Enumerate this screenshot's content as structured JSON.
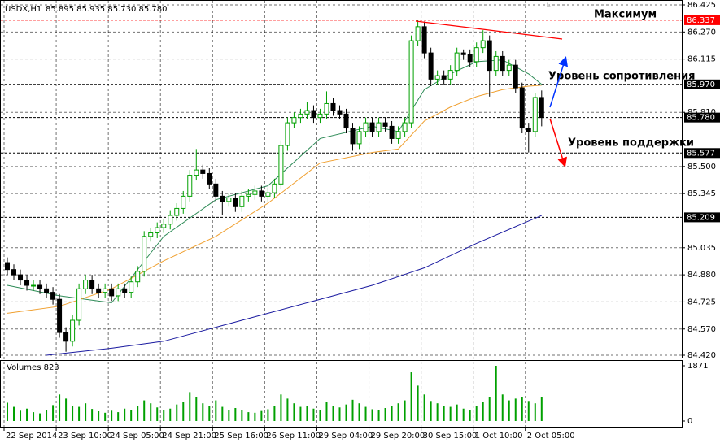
{
  "chart_data": {
    "type": "candlestick",
    "title": "USDX,H1",
    "subtitle": "85.895 85.935 85.730 85.780",
    "bull_color": "#00a000",
    "bear_color": "#000000",
    "grid": true,
    "xlim": [
      -0.5,
      103.5
    ],
    "xticks": [
      {
        "value": 0,
        "label": "22 Sep 2014"
      },
      {
        "value": 8,
        "label": "23 Sep 10:00"
      },
      {
        "value": 16,
        "label": "24 Sep 05:00"
      },
      {
        "value": 24,
        "label": "24 Sep 21:00"
      },
      {
        "value": 32,
        "label": "25 Sep 16:00"
      },
      {
        "value": 40,
        "label": "26 Sep 11:00"
      },
      {
        "value": 48,
        "label": "29 Sep 04:00"
      },
      {
        "value": 56,
        "label": "29 Sep 20:00"
      },
      {
        "value": 64,
        "label": "30 Sep 15:00"
      },
      {
        "value": 72,
        "label": "1 Oct 10:00"
      },
      {
        "value": 80,
        "label": "2 Oct 05:00"
      }
    ],
    "ylim": [
      84.42,
      86.425
    ],
    "yticks": [
      86.425,
      {
        "value": 86.27,
        "label": "86.270"
      },
      86.115,
      {
        "value": 85.81,
        "label": "85.810"
      },
      {
        "value": 85.5,
        "label": "85.500"
      },
      85.345,
      85.035,
      {
        "value": 84.88,
        "label": "84.880"
      },
      84.725,
      {
        "value": 84.57,
        "label": "84.570"
      },
      {
        "value": 84.42,
        "label": "84.420"
      }
    ],
    "open": [
      84.95,
      84.91,
      84.88,
      84.85,
      84.82,
      84.82,
      84.8,
      84.78,
      84.74,
      84.55,
      84.5,
      84.62,
      84.8,
      84.85,
      84.8,
      84.78,
      84.8,
      84.76,
      84.8,
      84.78,
      84.84,
      84.9,
      85.1,
      85.12,
      85.15,
      85.17,
      85.22,
      85.26,
      85.33,
      85.45,
      85.48,
      85.46,
      85.4,
      85.33,
      85.3,
      85.32,
      85.27,
      85.33,
      85.34,
      85.36,
      85.33,
      85.35,
      85.4,
      85.62,
      85.75,
      85.78,
      85.8,
      85.82,
      85.78,
      85.8,
      85.86,
      85.82,
      85.8,
      85.72,
      85.63,
      85.7,
      85.75,
      85.7,
      85.75,
      85.73,
      85.66,
      85.7,
      85.75,
      86.22,
      86.3,
      86.15,
      86.0,
      86.02,
      86.0,
      86.05,
      86.15,
      86.14,
      86.1,
      86.18,
      86.22,
      86.05,
      86.13,
      86.05,
      86.08,
      85.95,
      85.72,
      85.7,
      85.895
    ],
    "high": [
      84.98,
      84.94,
      84.91,
      84.88,
      84.85,
      84.85,
      84.83,
      84.81,
      84.77,
      84.58,
      84.65,
      84.83,
      84.88,
      84.88,
      84.83,
      84.83,
      84.83,
      84.83,
      84.83,
      84.87,
      84.93,
      85.13,
      85.15,
      85.18,
      85.2,
      85.25,
      85.29,
      85.36,
      85.48,
      85.6,
      85.51,
      85.49,
      85.43,
      85.36,
      85.35,
      85.35,
      85.36,
      85.37,
      85.39,
      85.39,
      85.38,
      85.43,
      85.65,
      85.78,
      85.81,
      85.83,
      85.87,
      85.85,
      85.83,
      85.93,
      85.89,
      85.85,
      85.83,
      85.75,
      85.73,
      85.78,
      85.78,
      85.78,
      85.78,
      85.76,
      85.73,
      85.78,
      86.25,
      86.337,
      86.33,
      86.18,
      86.05,
      86.05,
      86.08,
      86.18,
      86.17,
      86.17,
      86.21,
      86.28,
      86.25,
      86.16,
      86.16,
      86.11,
      86.11,
      85.98,
      85.75,
      85.92,
      85.935
    ],
    "low": [
      84.88,
      84.85,
      84.82,
      84.79,
      84.79,
      84.77,
      84.75,
      84.71,
      84.52,
      84.44,
      84.47,
      84.59,
      84.77,
      84.77,
      84.75,
      84.75,
      84.73,
      84.73,
      84.75,
      84.75,
      84.81,
      84.87,
      85.07,
      85.09,
      85.12,
      85.14,
      85.19,
      85.23,
      85.3,
      85.42,
      85.43,
      85.37,
      85.3,
      85.22,
      85.27,
      85.24,
      85.24,
      85.3,
      85.31,
      85.3,
      85.3,
      85.32,
      85.37,
      85.59,
      85.72,
      85.75,
      85.77,
      85.75,
      85.75,
      85.77,
      85.79,
      85.77,
      85.69,
      85.59,
      85.6,
      85.67,
      85.67,
      85.67,
      85.7,
      85.63,
      85.63,
      85.67,
      85.72,
      86.19,
      86.12,
      85.96,
      85.97,
      85.97,
      85.97,
      86.02,
      86.11,
      86.07,
      86.07,
      86.15,
      85.9,
      86.02,
      86.02,
      86.02,
      85.92,
      85.69,
      85.58,
      85.67,
      85.73
    ],
    "close": [
      84.91,
      84.88,
      84.85,
      84.82,
      84.82,
      84.8,
      84.78,
      84.74,
      84.55,
      84.5,
      84.62,
      84.8,
      84.85,
      84.8,
      84.78,
      84.8,
      84.76,
      84.8,
      84.78,
      84.84,
      84.9,
      85.1,
      85.12,
      85.15,
      85.17,
      85.22,
      85.26,
      85.33,
      85.45,
      85.48,
      85.46,
      85.4,
      85.33,
      85.3,
      85.32,
      85.27,
      85.33,
      85.34,
      85.36,
      85.33,
      85.35,
      85.4,
      85.62,
      85.75,
      85.78,
      85.8,
      85.82,
      85.78,
      85.8,
      85.86,
      85.82,
      85.8,
      85.72,
      85.63,
      85.7,
      85.75,
      85.7,
      85.75,
      85.73,
      85.66,
      85.7,
      85.75,
      86.22,
      86.3,
      86.15,
      86.0,
      86.02,
      86.0,
      86.05,
      86.15,
      86.14,
      86.1,
      86.18,
      86.22,
      86.05,
      86.13,
      86.05,
      86.08,
      85.95,
      85.72,
      85.7,
      85.895,
      85.78
    ],
    "indicators": [
      {
        "color": "#2e8b57",
        "x": [
          0,
          8,
          16,
          24,
          32,
          40,
          48,
          56,
          60,
          64,
          68,
          72,
          76,
          80,
          82
        ],
        "values": [
          84.82,
          84.76,
          84.72,
          85.1,
          85.31,
          85.39,
          85.66,
          85.73,
          85.7,
          85.94,
          86.03,
          86.1,
          86.11,
          86.03,
          85.97
        ]
      },
      {
        "color": "#f0a030",
        "x": [
          0,
          8,
          16,
          24,
          32,
          40,
          48,
          56,
          60,
          64,
          68,
          72,
          76,
          80,
          82
        ],
        "values": [
          84.66,
          84.7,
          84.8,
          84.96,
          85.1,
          85.29,
          85.52,
          85.58,
          85.6,
          85.76,
          85.84,
          85.9,
          85.94,
          85.96,
          85.965
        ]
      },
      {
        "color": "#1a1aa0",
        "x": [
          6,
          16,
          24,
          32,
          40,
          48,
          56,
          64,
          72,
          82
        ],
        "values": [
          84.42,
          84.46,
          84.5,
          84.58,
          84.66,
          84.74,
          84.82,
          84.92,
          85.06,
          85.22
        ]
      }
    ],
    "levels": [
      {
        "value": 86.337,
        "label": "86.337",
        "color": "#ff0000"
      },
      {
        "value": 85.97,
        "label": "85.970",
        "color": "#000000"
      },
      {
        "value": 85.78,
        "label": "85.780",
        "color": "#000000"
      },
      {
        "value": 85.577,
        "label": "85.577",
        "color": "#000000"
      },
      {
        "value": 85.209,
        "label": "85.209",
        "color": "#000000"
      }
    ],
    "annotations": {
      "maximum": "Максимум",
      "resistance": "Уровень сопротивления",
      "support": "Уровень поддержки"
    },
    "volumes": {
      "title": "Volumes 823",
      "color": "#00a000",
      "ylim": [
        0,
        1871
      ],
      "yticks": [
        1871,
        0
      ],
      "values": [
        620,
        480,
        350,
        420,
        300,
        260,
        380,
        540,
        900,
        760,
        520,
        480,
        600,
        410,
        330,
        280,
        350,
        300,
        420,
        380,
        520,
        700,
        600,
        460,
        380,
        420,
        560,
        640,
        980,
        820,
        600,
        520,
        700,
        480,
        380,
        440,
        360,
        300,
        280,
        340,
        400,
        520,
        900,
        760,
        600,
        480,
        520,
        420,
        380,
        640,
        520,
        460,
        560,
        720,
        600,
        480,
        400,
        380,
        440,
        520,
        600,
        700,
        1650,
        1200,
        900,
        680,
        600,
        520,
        480,
        560,
        420,
        380,
        520,
        640,
        820,
        1871,
        900,
        700,
        760,
        820,
        680,
        600,
        823
      ]
    }
  }
}
